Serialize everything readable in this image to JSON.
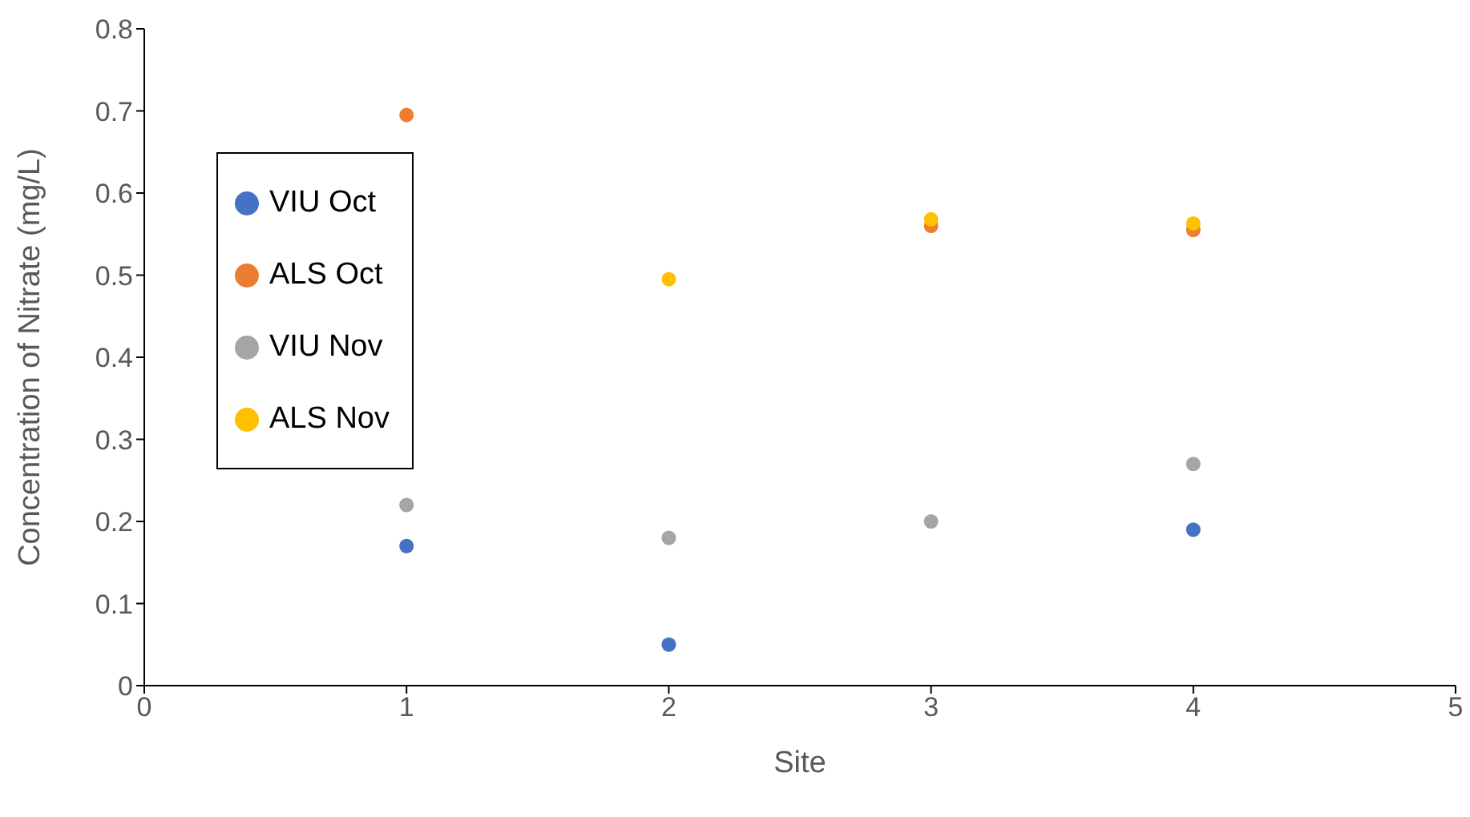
{
  "chart_data": {
    "type": "scatter",
    "xlabel": "Site",
    "ylabel": "Concentration of Nitrate (mg/L)",
    "x": [
      1,
      2,
      3,
      4
    ],
    "series": [
      {
        "name": "VIU Oct",
        "color": "#4472c4",
        "values": [
          0.17,
          0.05,
          null,
          0.19
        ]
      },
      {
        "name": "ALS Oct",
        "color": "#ed7d31",
        "values": [
          0.695,
          null,
          0.56,
          0.555
        ]
      },
      {
        "name": "VIU Nov",
        "color": "#a5a5a5",
        "values": [
          0.22,
          0.18,
          0.2,
          0.27
        ]
      },
      {
        "name": "ALS Nov",
        "color": "#ffc000",
        "values": [
          null,
          0.495,
          0.568,
          0.563
        ]
      }
    ],
    "xlim": [
      0,
      5
    ],
    "xticks": [
      0,
      1,
      2,
      3,
      4,
      5
    ],
    "ylim": [
      0,
      0.8
    ],
    "yticks": [
      0,
      0.1,
      0.2,
      0.3,
      0.4,
      0.5,
      0.6,
      0.7,
      0.8
    ],
    "legend": "left",
    "marker": "circle",
    "grid": false
  }
}
